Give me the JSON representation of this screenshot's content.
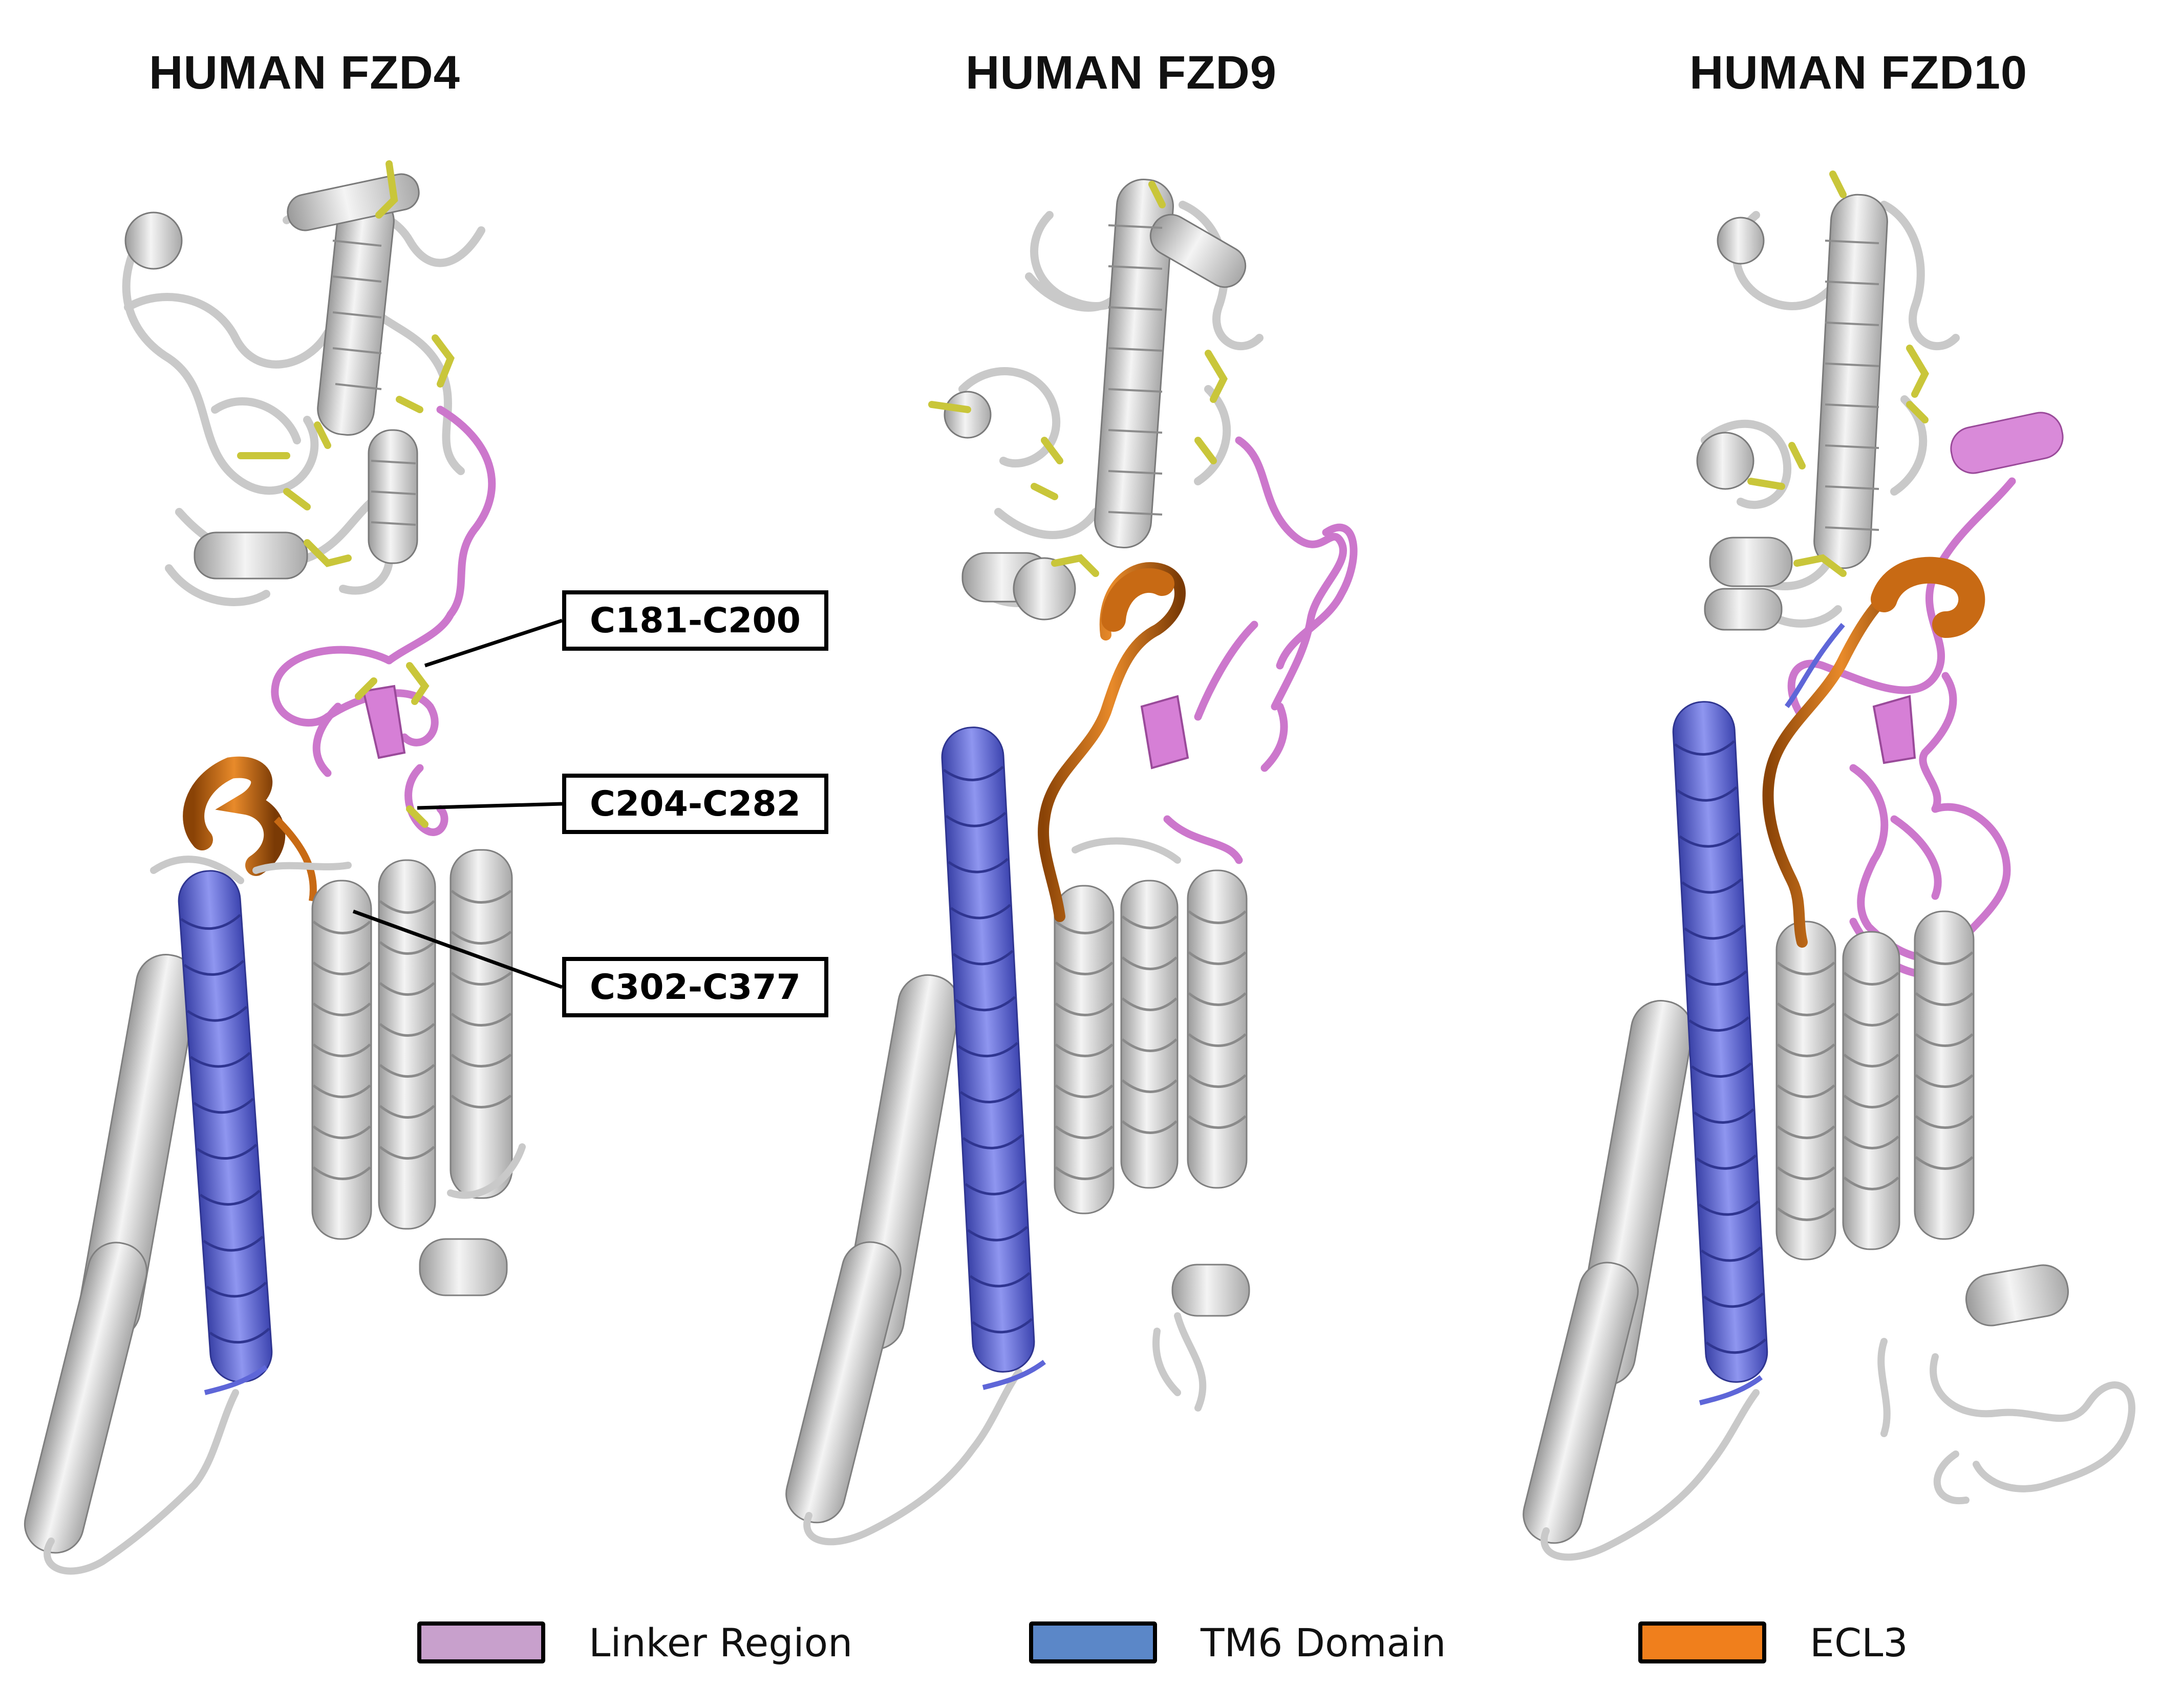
{
  "panels": [
    {
      "title": "HUMAN FZD4"
    },
    {
      "title": "HUMAN FZD9"
    },
    {
      "title": "HUMAN FZD10"
    }
  ],
  "callouts": [
    {
      "label": "C181-C200"
    },
    {
      "label": "C204-C282"
    },
    {
      "label": "C302-C377"
    }
  ],
  "legend": [
    {
      "label": "Linker Region",
      "color": "#c8a0cc"
    },
    {
      "label": "TM6 Domain",
      "color": "#5b87c8"
    },
    {
      "label": "ECL3",
      "color": "#f07f1c"
    }
  ],
  "colors": {
    "backbone": "#d3d3d3",
    "backbone_shade": "#8e8e8e",
    "linker": "#cc77cc",
    "tm6": "#5e66d8",
    "ecl3": "#c86a14",
    "disulfide": "#c9c63a"
  }
}
